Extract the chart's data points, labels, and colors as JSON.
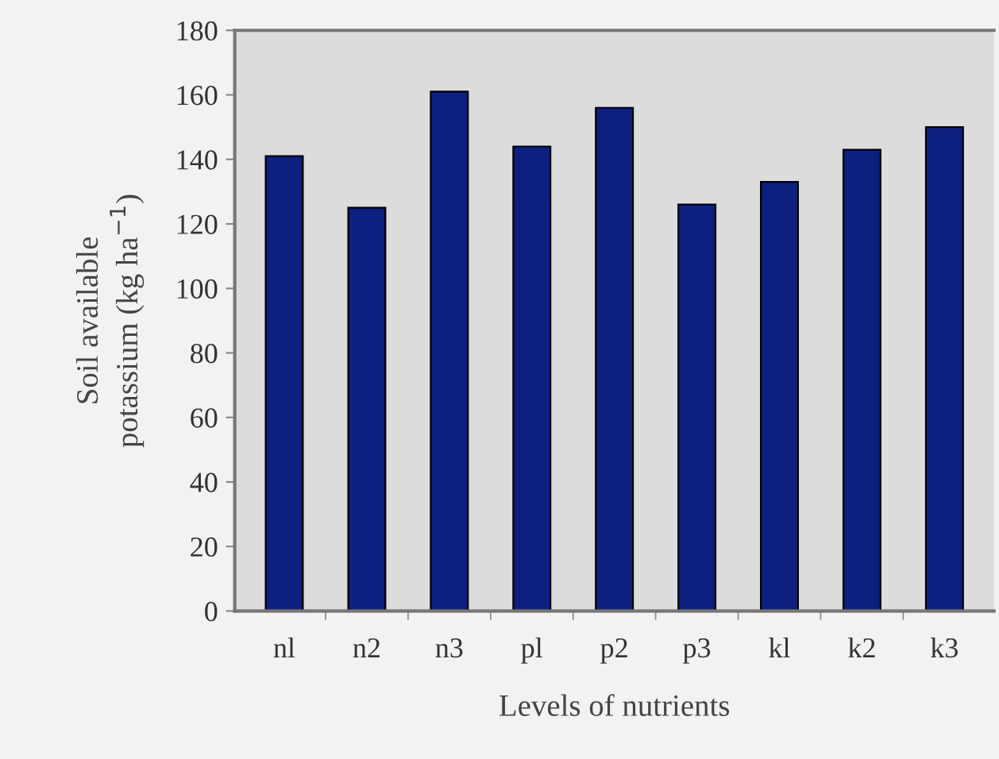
{
  "chart_data": {
    "type": "bar",
    "xlabel": "Levels of nutrients",
    "ylabel": "Soil available\npotassium (kg ha$^{−1}$)",
    "categories": [
      "nl",
      "n2",
      "n3",
      "pl",
      "p2",
      "p3",
      "kl",
      "k2",
      "k3"
    ],
    "values": [
      141,
      125,
      161,
      144,
      156,
      126,
      133,
      143,
      150
    ],
    "color": "#0d2080",
    "ylim": [
      0,
      180
    ],
    "yticks": [
      0,
      20,
      40,
      60,
      80,
      100,
      120,
      140,
      160,
      180
    ],
    "grid": false
  }
}
